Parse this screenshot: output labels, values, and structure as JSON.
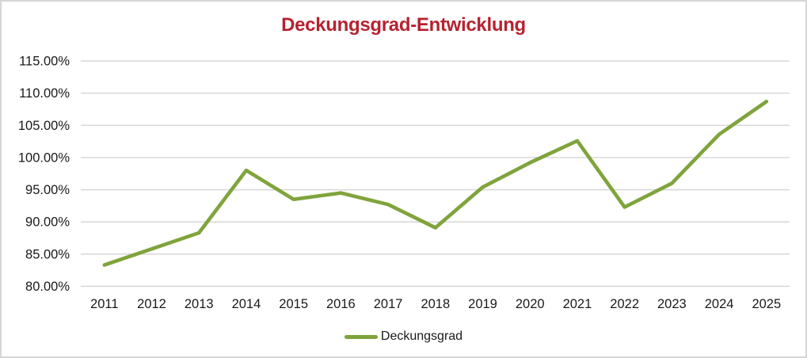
{
  "window": {
    "background": "#FFFFFF",
    "border_color": "#D6D6D6",
    "gridline_color": "#D9D9D9",
    "text_color": "#1A1A1A"
  },
  "chart_data": {
    "type": "line",
    "title": "Deckungsgrad-Entwicklung",
    "title_color": "#B6222F",
    "categories": [
      "2011",
      "2012",
      "2013",
      "2014",
      "2015",
      "2016",
      "2017",
      "2018",
      "2019",
      "2020",
      "2021",
      "2022",
      "2023",
      "2024",
      "2025"
    ],
    "series": [
      {
        "name": "Deckungsgrad",
        "color": "#7FA43C",
        "values": [
          83.3,
          85.8,
          88.3,
          98.0,
          93.5,
          94.5,
          92.7,
          89.1,
          95.4,
          99.2,
          102.6,
          92.3,
          96.0,
          103.6,
          108.7
        ]
      }
    ],
    "xlabel": "",
    "ylabel": "",
    "ylim": [
      80,
      115
    ],
    "ytick_step": 5,
    "ytick_labels_top_to_bottom": [
      "115.00%",
      "110.00%",
      "105.00%",
      "100.00%",
      "95.00%",
      "90.00%",
      "85.00%",
      "80.00%"
    ],
    "grid": "horizontal",
    "legend_position": "bottom",
    "legend_entries": [
      "Deckungsgrad"
    ]
  }
}
